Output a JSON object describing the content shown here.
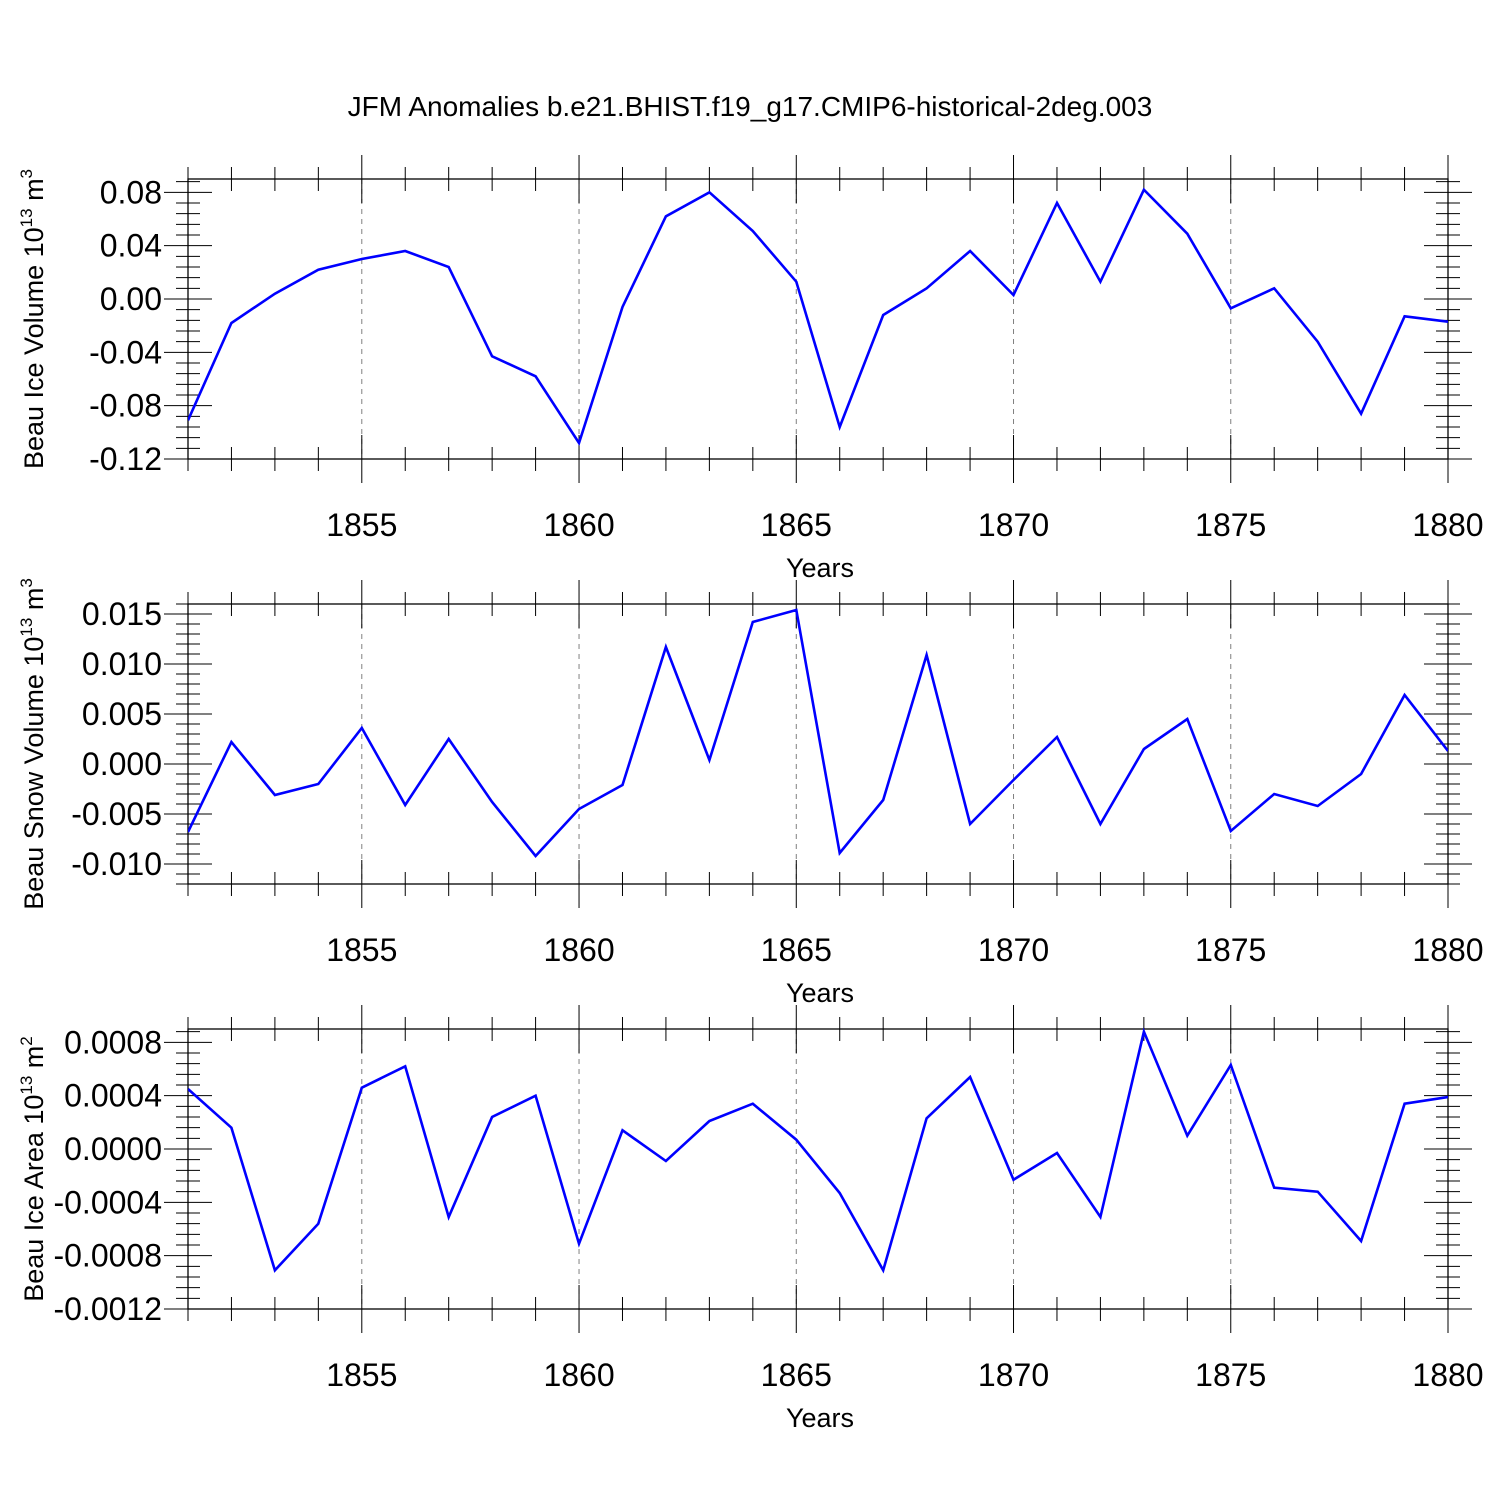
{
  "title": "JFM Anomalies b.e21.BHIST.f19_g17.CMIP6-historical-2deg.003",
  "colors": {
    "series": "#0000ff",
    "axis": "#000000",
    "grid": "#808080"
  },
  "chart_data": [
    {
      "type": "line",
      "title": "JFM Anomalies b.e21.BHIST.f19_g17.CMIP6-historical-2deg.003",
      "xlabel": "Years",
      "ylabel": "Beau Ice Volume 10",
      "ylabel_sup": "13",
      "ylabel_unit": "m",
      "ylabel_unit_sup": "3",
      "xlim": [
        1851,
        1880
      ],
      "ylim": [
        -0.12,
        0.09
      ],
      "xticks": [
        1855,
        1860,
        1865,
        1870,
        1875,
        1880
      ],
      "xtick_labels": [
        "1855",
        "1860",
        "1865",
        "1870",
        "1875",
        "1880"
      ],
      "yticks": [
        -0.12,
        -0.08,
        -0.04,
        0.0,
        0.04,
        0.08
      ],
      "ytick_labels": [
        "-0.12",
        "-0.08",
        "-0.04",
        "0.00",
        "0.04",
        "0.08"
      ],
      "grid": "vertical dashed at labeled years",
      "x": [
        1851,
        1852,
        1853,
        1854,
        1855,
        1856,
        1857,
        1858,
        1859,
        1860,
        1861,
        1862,
        1863,
        1864,
        1865,
        1866,
        1867,
        1868,
        1869,
        1870,
        1871,
        1872,
        1873,
        1874,
        1875,
        1876,
        1877,
        1878,
        1879,
        1880
      ],
      "y": [
        -0.091,
        -0.018,
        0.004,
        0.022,
        0.03,
        0.036,
        0.024,
        -0.043,
        -0.058,
        -0.108,
        -0.006,
        0.062,
        0.08,
        0.051,
        0.013,
        -0.096,
        -0.012,
        0.008,
        0.036,
        0.003,
        0.072,
        0.013,
        0.082,
        0.049,
        -0.007,
        0.008,
        -0.032,
        -0.086,
        -0.013,
        -0.017
      ]
    },
    {
      "type": "line",
      "xlabel": "Years",
      "ylabel": "Beau Snow Volume 10",
      "ylabel_sup": "13",
      "ylabel_unit": "m",
      "ylabel_unit_sup": "3",
      "xlim": [
        1851,
        1880
      ],
      "ylim": [
        -0.012,
        0.016
      ],
      "xticks": [
        1855,
        1860,
        1865,
        1870,
        1875,
        1880
      ],
      "xtick_labels": [
        "1855",
        "1860",
        "1865",
        "1870",
        "1875",
        "1880"
      ],
      "yticks": [
        -0.01,
        -0.005,
        0.0,
        0.005,
        0.01,
        0.015
      ],
      "ytick_labels": [
        "-0.010",
        "-0.005",
        "0.000",
        "0.005",
        "0.010",
        "0.015"
      ],
      "grid": "vertical dashed at labeled years",
      "x": [
        1851,
        1852,
        1853,
        1854,
        1855,
        1856,
        1857,
        1858,
        1859,
        1860,
        1861,
        1862,
        1863,
        1864,
        1865,
        1866,
        1867,
        1868,
        1869,
        1870,
        1871,
        1872,
        1873,
        1874,
        1875,
        1876,
        1877,
        1878,
        1879,
        1880
      ],
      "y": [
        -0.0068,
        0.0022,
        -0.0031,
        -0.002,
        0.0036,
        -0.0041,
        0.0025,
        -0.0038,
        -0.0092,
        -0.0045,
        -0.0021,
        0.0117,
        0.0004,
        0.0142,
        0.0154,
        -0.0089,
        -0.0036,
        0.0109,
        -0.006,
        -0.0016,
        0.0027,
        -0.006,
        0.0015,
        0.0045,
        -0.0067,
        -0.003,
        -0.0042,
        -0.001,
        0.0069,
        0.0013
      ]
    },
    {
      "type": "line",
      "xlabel": "Years",
      "ylabel": "Beau Ice Area 10",
      "ylabel_sup": "13",
      "ylabel_unit": "m",
      "ylabel_unit_sup": "2",
      "xlim": [
        1851,
        1880
      ],
      "ylim": [
        -0.0012,
        0.0009
      ],
      "xticks": [
        1855,
        1860,
        1865,
        1870,
        1875,
        1880
      ],
      "xtick_labels": [
        "1855",
        "1860",
        "1865",
        "1870",
        "1875",
        "1880"
      ],
      "yticks": [
        -0.0012,
        -0.0008,
        -0.0004,
        0.0,
        0.0004,
        0.0008
      ],
      "ytick_labels": [
        "-0.0012",
        "-0.0008",
        "-0.0004",
        "0.0000",
        "0.0004",
        "0.0008"
      ],
      "grid": "vertical dashed at labeled years",
      "x": [
        1851,
        1852,
        1853,
        1854,
        1855,
        1856,
        1857,
        1858,
        1859,
        1860,
        1861,
        1862,
        1863,
        1864,
        1865,
        1866,
        1867,
        1868,
        1869,
        1870,
        1871,
        1872,
        1873,
        1874,
        1875,
        1876,
        1877,
        1878,
        1879,
        1880
      ],
      "y": [
        0.00045,
        0.00016,
        -0.00091,
        -0.00056,
        0.00046,
        0.00062,
        -0.00051,
        0.00024,
        0.0004,
        -0.00071,
        0.00014,
        -9e-05,
        0.00021,
        0.00034,
        7e-05,
        -0.00033,
        -0.00091,
        0.00023,
        0.00054,
        -0.00023,
        -3e-05,
        -0.00051,
        0.00088,
        0.0001,
        0.00063,
        -0.00029,
        -0.00032,
        -0.00069,
        0.00034,
        0.00039
      ]
    }
  ]
}
